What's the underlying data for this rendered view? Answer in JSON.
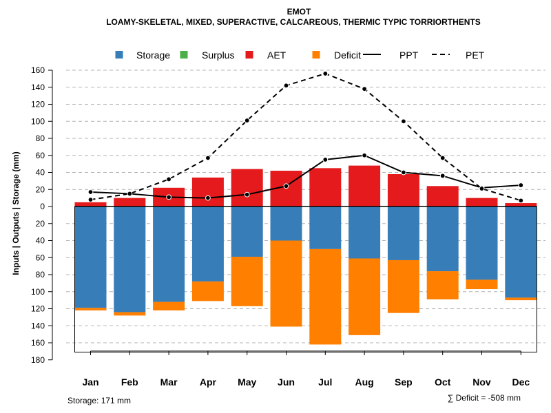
{
  "chart_data": {
    "type": "bar",
    "title": "EMOT",
    "subtitle": "LOAMY-SKELETAL, MIXED, SUPERACTIVE, CALCAREOUS, THERMIC TYPIC TORRIORTHENTS",
    "ylabel": "Inputs | Outputs | Storage    (mm)",
    "xlabel": "",
    "categories": [
      "Jan",
      "Feb",
      "Mar",
      "Apr",
      "May",
      "Jun",
      "Jul",
      "Aug",
      "Sep",
      "Oct",
      "Nov",
      "Dec"
    ],
    "ylim": [
      -180,
      160
    ],
    "y_ticks": [
      160,
      140,
      120,
      100,
      80,
      60,
      40,
      20,
      0,
      -20,
      -40,
      -60,
      -80,
      -100,
      -120,
      -140,
      -160,
      -180
    ],
    "y_tick_labels": [
      "160",
      "140",
      "120",
      "100",
      "80",
      "60",
      "40",
      "20",
      "0",
      "20",
      "40",
      "60",
      "80",
      "100",
      "120",
      "140",
      "160",
      "180"
    ],
    "grid": true,
    "legend_position": "top",
    "legend": [
      {
        "name": "Storage",
        "symbol": "square",
        "color": "#377EB8"
      },
      {
        "name": "Surplus",
        "symbol": "square",
        "color": "#4DAF4A"
      },
      {
        "name": "AET",
        "symbol": "square",
        "color": "#E41A1C"
      },
      {
        "name": "Deficit",
        "symbol": "square",
        "color": "#FF7F00"
      },
      {
        "name": "PPT",
        "symbol": "solid-line",
        "color": "#000000"
      },
      {
        "name": "PET",
        "symbol": "dashed-line",
        "color": "#000000"
      }
    ],
    "series": [
      {
        "name": "AET",
        "color": "#E41A1C",
        "values": [
          5,
          10,
          22,
          34,
          44,
          42,
          45,
          48,
          38,
          24,
          10,
          4
        ]
      },
      {
        "name": "Storage",
        "color": "#377EB8",
        "values": [
          -119,
          -124,
          -112,
          -88,
          -59,
          -40,
          -50,
          -61,
          -63,
          -76,
          -86,
          -107
        ]
      },
      {
        "name": "Deficit",
        "color": "#FF7F00",
        "values": [
          -3,
          -4,
          -10,
          -23,
          -58,
          -101,
          -112,
          -90,
          -62,
          -33,
          -11,
          -3
        ]
      },
      {
        "name": "Surplus",
        "color": "#4DAF4A",
        "values": [
          0,
          0,
          0,
          0,
          0,
          0,
          0,
          0,
          0,
          0,
          0,
          0
        ]
      },
      {
        "name": "PPT",
        "color": "#000000",
        "line": "solid",
        "values": [
          17,
          15,
          11,
          10,
          14,
          24,
          55,
          60,
          40,
          36,
          22,
          25
        ]
      },
      {
        "name": "PET",
        "color": "#000000",
        "line": "dashed",
        "values": [
          8,
          15,
          32,
          57,
          101,
          142,
          156,
          138,
          100,
          57,
          21,
          7
        ]
      }
    ],
    "storage_capacity": 171,
    "footer_left": "Storage: 171 mm",
    "footer_right": "∑ Deficit = -508 mm"
  }
}
